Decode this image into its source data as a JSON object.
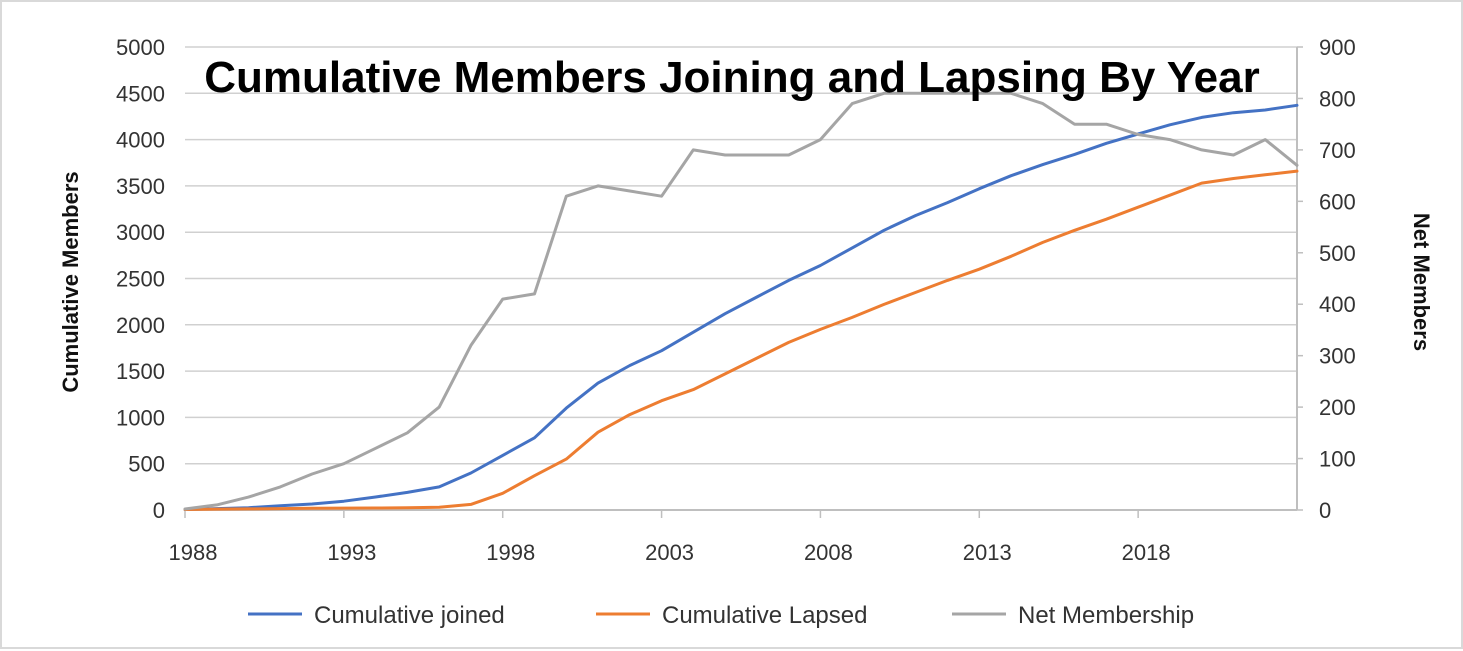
{
  "chart_data": {
    "type": "line",
    "title": "Cumulative Members Joining and Lapsing By Year",
    "ylabel": "Cumulative Members",
    "y2label": "Net Members",
    "xlim": [
      1988,
      2023
    ],
    "ylim": [
      0,
      5000
    ],
    "y2lim": [
      0,
      900
    ],
    "x_ticks": [
      "1988",
      "1993",
      "1998",
      "2003",
      "2008",
      "2013",
      "2018"
    ],
    "y_ticks": [
      "0",
      "500",
      "1000",
      "1500",
      "2000",
      "2500",
      "3000",
      "3500",
      "4000",
      "4500",
      "5000"
    ],
    "y2_ticks": [
      "0",
      "100",
      "200",
      "300",
      "400",
      "500",
      "600",
      "700",
      "800",
      "900"
    ],
    "grid": true,
    "legend_position": "bottom",
    "x": [
      1988,
      1989,
      1990,
      1991,
      1992,
      1993,
      1994,
      1995,
      1996,
      1997,
      1998,
      1999,
      2000,
      2001,
      2002,
      2003,
      2004,
      2005,
      2006,
      2007,
      2008,
      2009,
      2010,
      2011,
      2012,
      2013,
      2014,
      2015,
      2016,
      2017,
      2018,
      2019,
      2020,
      2021,
      2022,
      2023
    ],
    "series": [
      {
        "name": "Cumulative joined",
        "axis": "left",
        "color": "#4472c4",
        "values": [
          5,
          15,
          25,
          45,
          65,
          95,
          140,
          190,
          250,
          400,
          590,
          780,
          1100,
          1370,
          1560,
          1720,
          1920,
          2120,
          2300,
          2480,
          2640,
          2830,
          3020,
          3180,
          3320,
          3470,
          3610,
          3730,
          3840,
          3960,
          4060,
          4160,
          4240,
          4290,
          4320,
          4370
        ]
      },
      {
        "name": "Cumulative Lapsed",
        "axis": "left",
        "color": "#ed7d31",
        "values": [
          5,
          10,
          12,
          15,
          18,
          20,
          22,
          25,
          30,
          60,
          180,
          370,
          550,
          840,
          1030,
          1180,
          1300,
          1470,
          1640,
          1810,
          1950,
          2080,
          2220,
          2350,
          2480,
          2600,
          2740,
          2890,
          3020,
          3140,
          3270,
          3400,
          3530,
          3580,
          3620,
          3660
        ]
      },
      {
        "name": "Net Membership",
        "axis": "right",
        "color": "#a5a5a5",
        "values": [
          2,
          10,
          25,
          45,
          70,
          90,
          120,
          150,
          200,
          320,
          410,
          420,
          610,
          630,
          620,
          610,
          700,
          690,
          690,
          690,
          720,
          790,
          810,
          810,
          810,
          810,
          810,
          790,
          750,
          750,
          730,
          720,
          700,
          690,
          720,
          670
        ]
      }
    ]
  }
}
